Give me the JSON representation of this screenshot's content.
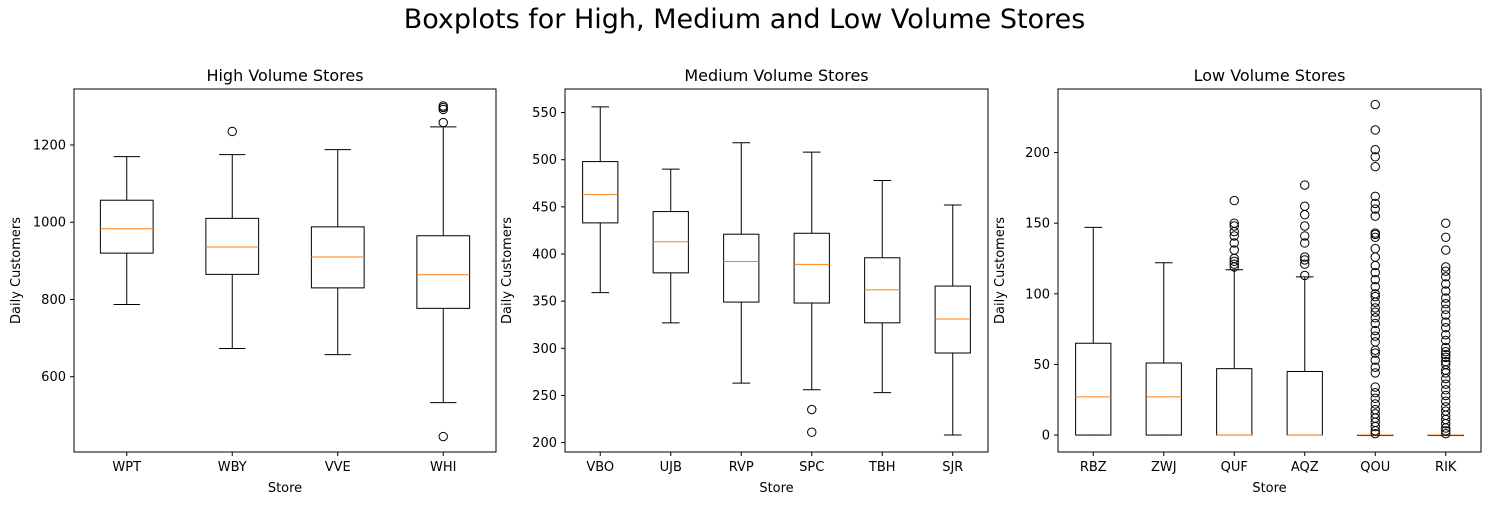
{
  "figure": {
    "suptitle": "Boxplots for High, Medium and Low Volume Stores"
  },
  "colors": {
    "box": "#000000",
    "median": "#ff7f0e",
    "flier": "#000000"
  },
  "chart_data": [
    {
      "type": "boxplot",
      "title": "High Volume Stores",
      "xlabel": "Store",
      "ylabel": "Daily Customers",
      "ylim": [
        405,
        1345
      ],
      "yticks": [
        600,
        800,
        1000,
        1200
      ],
      "categories": [
        "WPT",
        "WBY",
        "VVE",
        "WHI"
      ],
      "boxes": [
        {
          "label": "WPT",
          "whislo": 787,
          "q1": 920,
          "med": 983,
          "q3": 1057,
          "whishi": 1170,
          "fliers": []
        },
        {
          "label": "WBY",
          "whislo": 673,
          "q1": 865,
          "med": 936,
          "q3": 1010,
          "whishi": 1175,
          "fliers": [
            1235
          ]
        },
        {
          "label": "VVE",
          "whislo": 657,
          "q1": 830,
          "med": 910,
          "q3": 988,
          "whishi": 1188,
          "fliers": []
        },
        {
          "label": "WHI",
          "whislo": 533,
          "q1": 777,
          "med": 864,
          "q3": 965,
          "whishi": 1247,
          "fliers": [
            445,
            1258,
            1292,
            1297,
            1301
          ]
        }
      ]
    },
    {
      "type": "boxplot",
      "title": "Medium Volume Stores",
      "xlabel": "Store",
      "ylabel": "Daily Customers",
      "ylim": [
        190,
        575
      ],
      "yticks": [
        200,
        250,
        300,
        350,
        400,
        450,
        500,
        550
      ],
      "categories": [
        "VBO",
        "UJB",
        "RVP",
        "SPC",
        "TBH",
        "SJR"
      ],
      "boxes": [
        {
          "label": "VBO",
          "whislo": 359,
          "q1": 433,
          "med": 463,
          "q3": 498,
          "whishi": 556,
          "fliers": []
        },
        {
          "label": "UJB",
          "whislo": 327,
          "q1": 380,
          "med": 413,
          "q3": 445,
          "whishi": 490,
          "fliers": []
        },
        {
          "label": "RVP",
          "whislo": 263,
          "q1": 349,
          "med": 392,
          "q3": 421,
          "whishi": 518,
          "fliers": []
        },
        {
          "label": "SPC",
          "whislo": 256,
          "q1": 348,
          "med": 389,
          "q3": 422,
          "whishi": 508,
          "fliers": [
            211,
            235
          ]
        },
        {
          "label": "TBH",
          "whislo": 253,
          "q1": 327,
          "med": 362,
          "q3": 396,
          "whishi": 478,
          "fliers": []
        },
        {
          "label": "SJR",
          "whislo": 208,
          "q1": 295,
          "med": 331,
          "q3": 366,
          "whishi": 452,
          "fliers": []
        }
      ]
    },
    {
      "type": "boxplot",
      "title": "Low Volume Stores",
      "xlabel": "Store",
      "ylabel": "Daily Customers",
      "ylim": [
        -12,
        245
      ],
      "yticks": [
        0,
        50,
        100,
        150,
        200
      ],
      "categories": [
        "RBZ",
        "ZWJ",
        "QUF",
        "AQZ",
        "QOU",
        "RIK"
      ],
      "boxes": [
        {
          "label": "RBZ",
          "whislo": 0,
          "q1": 0,
          "med": 27,
          "q3": 65,
          "whishi": 147,
          "fliers": []
        },
        {
          "label": "ZWJ",
          "whislo": 0,
          "q1": 0,
          "med": 27,
          "q3": 51,
          "whishi": 122,
          "fliers": []
        },
        {
          "label": "QUF",
          "whislo": 0,
          "q1": 0,
          "med": 0,
          "q3": 47,
          "whishi": 117,
          "fliers": [
            119,
            121,
            123,
            125,
            131,
            136,
            141,
            144,
            148,
            150,
            166
          ]
        },
        {
          "label": "AQZ",
          "whislo": 0,
          "q1": 0,
          "med": 0,
          "q3": 45,
          "whishi": 112,
          "fliers": [
            113,
            121,
            124,
            126,
            136,
            141,
            148,
            156,
            162,
            177
          ]
        },
        {
          "label": "QOU",
          "whislo": 0,
          "q1": 0,
          "med": 0,
          "q3": 0,
          "whishi": 0,
          "fliers": [
            1,
            3,
            6,
            9,
            12,
            15,
            18,
            22,
            26,
            30,
            34,
            44,
            48,
            53,
            58,
            60,
            66,
            70,
            74,
            79,
            83,
            87,
            90,
            94,
            98,
            100,
            105,
            110,
            115,
            120,
            126,
            132,
            140,
            142,
            143,
            155,
            160,
            164,
            169,
            190,
            197,
            202,
            216,
            234
          ]
        },
        {
          "label": "RIK",
          "whislo": 0,
          "q1": 0,
          "med": 0,
          "q3": 0,
          "whishi": 0,
          "fliers": [
            1,
            3,
            5,
            8,
            11,
            14,
            17,
            20,
            24,
            28,
            32,
            36,
            40,
            44,
            46,
            50,
            52,
            55,
            57,
            59,
            62,
            67,
            71,
            76,
            80,
            85,
            89,
            93,
            97,
            102,
            107,
            112,
            116,
            119,
            131,
            140,
            150
          ]
        }
      ]
    }
  ]
}
